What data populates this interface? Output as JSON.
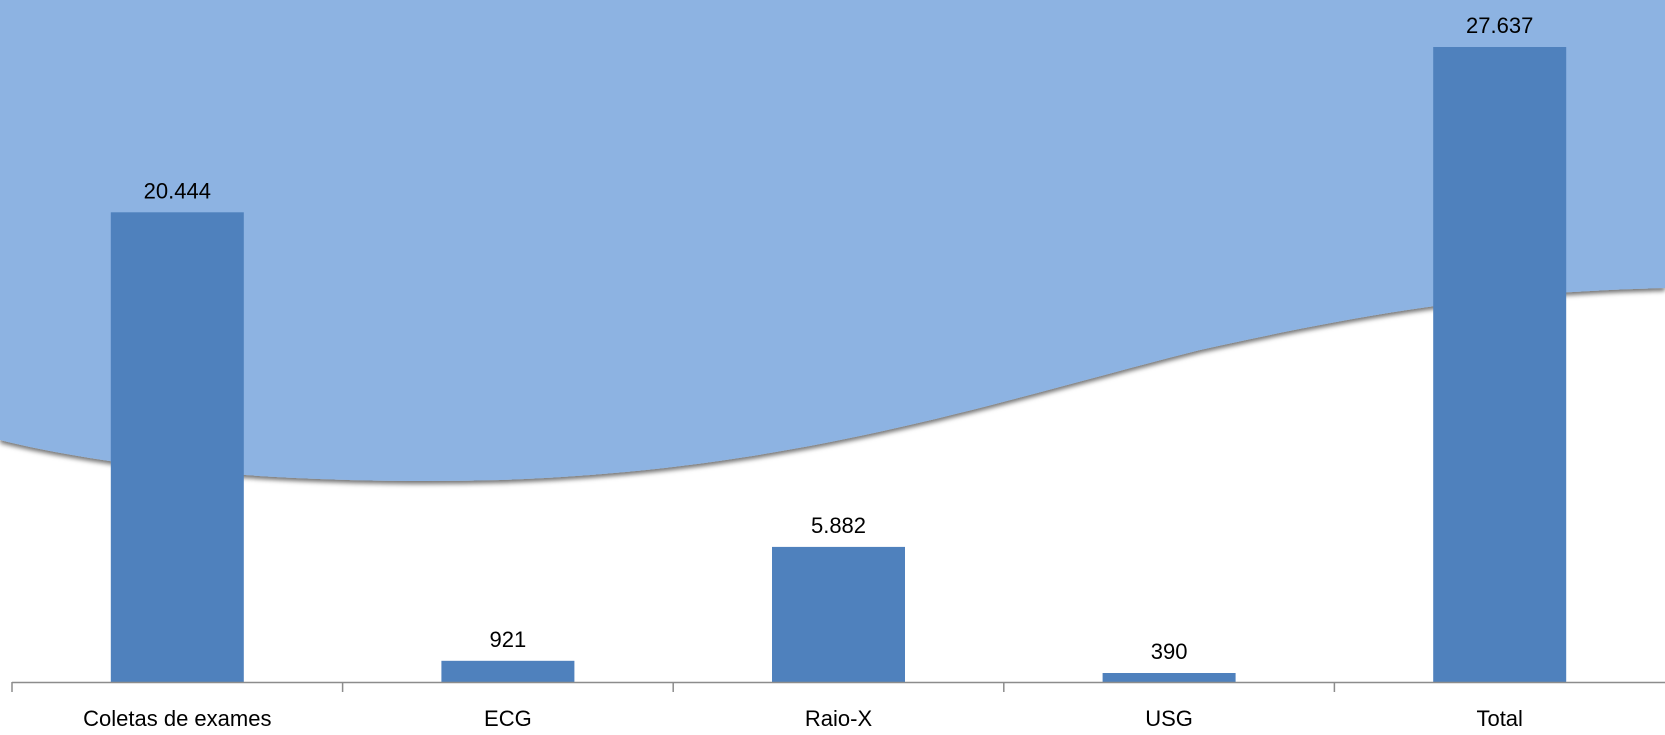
{
  "chart_data": {
    "type": "bar",
    "title": "",
    "xlabel": "",
    "ylabel": "",
    "categories": [
      "Coletas de exames",
      "ECG",
      "Raio-X",
      "USG",
      "Total"
    ],
    "values": [
      20444,
      921,
      5882,
      390,
      27637
    ],
    "value_labels": [
      "20.444",
      "921",
      "5.882",
      "390",
      "27.637"
    ],
    "ylim": [
      0,
      27637
    ],
    "grid": false,
    "legend": "none"
  },
  "colors": {
    "bar": "#4f81bd",
    "background_wave": "#8db3e2",
    "background": "#ffffff",
    "axis": "#8c8c8c",
    "text": "#000000"
  }
}
